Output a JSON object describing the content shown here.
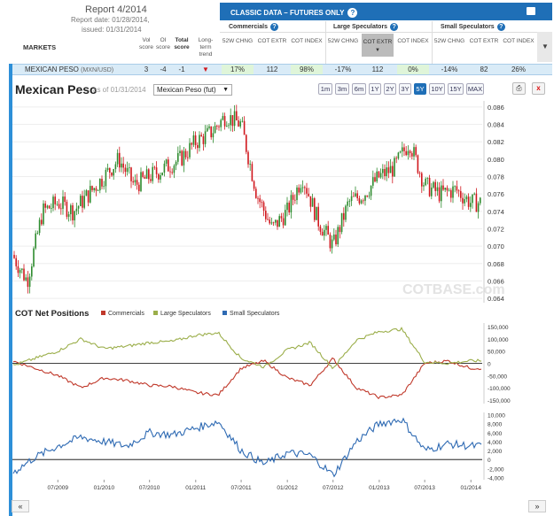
{
  "report": {
    "title": "Report 4/2014",
    "date": "Report date: 01/28/2014,",
    "issued": "issued: 01/31/2014"
  },
  "columns": {
    "markets": "MARKETS",
    "vol": "Vol score",
    "oi": "OI score",
    "total": "Total score",
    "trend": "Long-term trend"
  },
  "classic": {
    "title": "CLASSIC DATA – FUTURES ONLY",
    "help": "?"
  },
  "groups": [
    {
      "label": "Commercials"
    },
    {
      "label": "Large Speculators"
    },
    {
      "label": "Small Speculators"
    }
  ],
  "sub_headers": [
    "52W CHNG",
    "COT EXTR",
    "COT INDEX"
  ],
  "row": {
    "name": "MEXICAN PESO",
    "pair": "(MXN/USD)",
    "vol": "3",
    "oi": "-4",
    "total": "-1",
    "trend_icon": "down-arrow-icon",
    "values": [
      "17%",
      "112",
      "98%",
      "-17%",
      "112",
      "0%",
      "-14%",
      "82",
      "26%"
    ]
  },
  "chart": {
    "title": "Mexican Peso",
    "asof": "as of 01/31/2014",
    "selector": "Mexican Peso (fut)",
    "ranges": [
      "1m",
      "3m",
      "6m",
      "1Y",
      "2Y",
      "3Y",
      "5Y",
      "10Y",
      "15Y",
      "MAX"
    ],
    "active_range": "5Y",
    "watermark": "COTBASE.com",
    "cot_title": "COT Net Positions",
    "legend": [
      "Commercials",
      "Large Speculators",
      "Small Speculators"
    ],
    "colors": {
      "commercials": "#c0392b",
      "large": "#9bae4a",
      "small": "#2e6ab3",
      "up": "#2e8b2e",
      "down": "#d0181e"
    }
  },
  "chart_data": [
    {
      "type": "candlestick",
      "title": "Mexican Peso",
      "x_ticks": [
        "07/2009",
        "01/2010",
        "07/2010",
        "01/2011",
        "07/2011",
        "01/2012",
        "07/2012",
        "01/2013",
        "07/2013",
        "01/2014"
      ],
      "y_ticks": [
        0.064,
        0.066,
        0.068,
        0.07,
        0.072,
        0.074,
        0.076,
        0.078,
        0.08,
        0.082,
        0.084,
        0.086
      ],
      "ylim": [
        0.0635,
        0.0867
      ],
      "close_series": {
        "x": [
          "2009-01",
          "2009-03",
          "2009-05",
          "2009-07",
          "2009-09",
          "2009-11",
          "2010-01",
          "2010-03",
          "2010-05",
          "2010-07",
          "2010-09",
          "2010-11",
          "2011-01",
          "2011-03",
          "2011-05",
          "2011-07",
          "2011-09",
          "2011-11",
          "2012-01",
          "2012-03",
          "2012-05",
          "2012-07",
          "2012-09",
          "2012-11",
          "2013-01",
          "2013-03",
          "2013-05",
          "2013-07",
          "2013-09",
          "2013-11",
          "2014-01"
        ],
        "values": [
          0.069,
          0.066,
          0.074,
          0.075,
          0.074,
          0.076,
          0.078,
          0.08,
          0.077,
          0.078,
          0.079,
          0.08,
          0.082,
          0.083,
          0.085,
          0.084,
          0.076,
          0.072,
          0.074,
          0.078,
          0.073,
          0.07,
          0.075,
          0.076,
          0.078,
          0.079,
          0.082,
          0.077,
          0.076,
          0.0765,
          0.075
        ]
      }
    },
    {
      "type": "line",
      "title": "COT Net Positions",
      "series_names": [
        "Commercials",
        "Large Speculators",
        "Small Speculators"
      ],
      "y_ticks": [
        150000,
        100000,
        50000,
        0,
        -50000,
        -100000,
        -150000
      ],
      "ylim": [
        -165000,
        165000
      ],
      "x": [
        "2009-01",
        "2009-04",
        "2009-07",
        "2009-10",
        "2010-01",
        "2010-04",
        "2010-07",
        "2010-10",
        "2011-01",
        "2011-04",
        "2011-07",
        "2011-10",
        "2012-01",
        "2012-04",
        "2012-07",
        "2012-10",
        "2013-01",
        "2013-04",
        "2013-07",
        "2013-10",
        "2014-01"
      ],
      "commercials": [
        10000,
        -20000,
        -50000,
        -100000,
        -60000,
        -70000,
        -90000,
        -95000,
        -120000,
        -130000,
        -20000,
        10000,
        -60000,
        -90000,
        20000,
        -100000,
        -140000,
        -130000,
        0,
        10000,
        -20000
      ],
      "large": [
        -10000,
        20000,
        50000,
        100000,
        60000,
        70000,
        85000,
        90000,
        115000,
        125000,
        20000,
        -15000,
        55000,
        85000,
        -20000,
        95000,
        130000,
        140000,
        5000,
        0,
        10000
      ]
    },
    {
      "type": "line",
      "title": "Small Speculators",
      "y_ticks": [
        10000,
        8000,
        6000,
        4000,
        2000,
        0,
        -2000,
        -4000
      ],
      "ylim": [
        -4500,
        10500
      ],
      "x": [
        "2009-01",
        "2009-04",
        "2009-07",
        "2009-10",
        "2010-01",
        "2010-04",
        "2010-07",
        "2010-10",
        "2011-01",
        "2011-04",
        "2011-07",
        "2011-10",
        "2012-01",
        "2012-04",
        "2012-07",
        "2012-10",
        "2013-01",
        "2013-04",
        "2013-07",
        "2013-10",
        "2014-01"
      ],
      "values": [
        -3000,
        500,
        3000,
        5000,
        4000,
        3000,
        6000,
        5500,
        7000,
        8500,
        2000,
        -1000,
        1500,
        1000,
        -3500,
        4000,
        8000,
        9000,
        2000,
        3500,
        3000
      ]
    }
  ]
}
